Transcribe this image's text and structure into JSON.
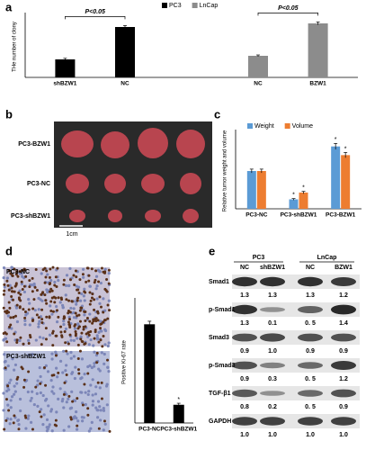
{
  "panels": [
    "a",
    "b",
    "c",
    "d",
    "e"
  ],
  "chart_data": [
    {
      "type": "bar",
      "ylabel": "THe number of clony",
      "categories": [
        "shBZW1",
        "NC",
        "NC",
        "BZW1"
      ],
      "series": [
        {
          "name": "PC3",
          "color": "#000000",
          "values": [
            25,
            70,
            null,
            null
          ],
          "errors": [
            1.5,
            2,
            null,
            null
          ]
        },
        {
          "name": "LnCap",
          "color": "#8c8c8c",
          "values": [
            null,
            null,
            30,
            75
          ],
          "errors": [
            null,
            null,
            1.2,
            2
          ]
        }
      ],
      "ylim": [
        0,
        85
      ],
      "annotations": [
        "P<0.05",
        "P<0.05"
      ],
      "legend": "top"
    },
    {
      "type": "bar",
      "ylabel": "Relative tumor weight and volume",
      "categories": [
        "PC3-NC",
        "PC3-shBZW1",
        "PC3-BZW1"
      ],
      "series": [
        {
          "name": "Weight",
          "color": "#5b9bd5",
          "values": [
            1.0,
            0.25,
            1.65
          ],
          "errors": [
            0.05,
            0.02,
            0.08
          ]
        },
        {
          "name": "Volume",
          "color": "#ed7d31",
          "values": [
            1.0,
            0.43,
            1.42
          ],
          "errors": [
            0.05,
            0.03,
            0.07
          ]
        }
      ],
      "ylim": [
        0,
        2
      ],
      "annotations": [
        "*",
        "*",
        "*",
        "*"
      ],
      "legend": "top"
    },
    {
      "type": "bar",
      "ylabel": "Positive Ki-67 rate",
      "categories": [
        "PC3-NC",
        "PC3-shBZW1"
      ],
      "values": [
        0.65,
        0.12
      ],
      "errors": [
        0.02,
        0.01
      ],
      "color": "#000000",
      "ylim": [
        0,
        0.8
      ],
      "annotations": [
        "*"
      ]
    }
  ],
  "tumor_photo": {
    "rows": [
      "PC3-BZW1",
      "PC3-NC",
      "PC3-shBZW1"
    ],
    "scale": "1cm"
  },
  "ihc": {
    "labels": [
      "PC3-NC",
      "PC3-shBZW1"
    ]
  },
  "blot": {
    "groups": [
      "PC3",
      "LnCap"
    ],
    "lanes": [
      "NC",
      "shBZW1",
      "NC",
      "BZW1"
    ],
    "rows": [
      {
        "protein": "Smad1",
        "values": [
          "1.3",
          "1.3",
          "1.3",
          "1.2"
        ]
      },
      {
        "protein": "p-Smad1",
        "values": [
          "1.3",
          "0.1",
          "0. 5",
          "1.4"
        ]
      },
      {
        "protein": "Smad3",
        "values": [
          "0.9",
          "1.0",
          "0.9",
          "0.9"
        ]
      },
      {
        "protein": "p-Smad3",
        "values": [
          "0.9",
          "0.3",
          "0. 5",
          "1.2"
        ]
      },
      {
        "protein": "TGF-β1",
        "values": [
          "0.8",
          "0.2",
          "0. 5",
          "0.9"
        ]
      },
      {
        "protein": "GAPDH",
        "values": [
          "1.0",
          "1.0",
          "1.0",
          "1.0"
        ]
      }
    ]
  }
}
